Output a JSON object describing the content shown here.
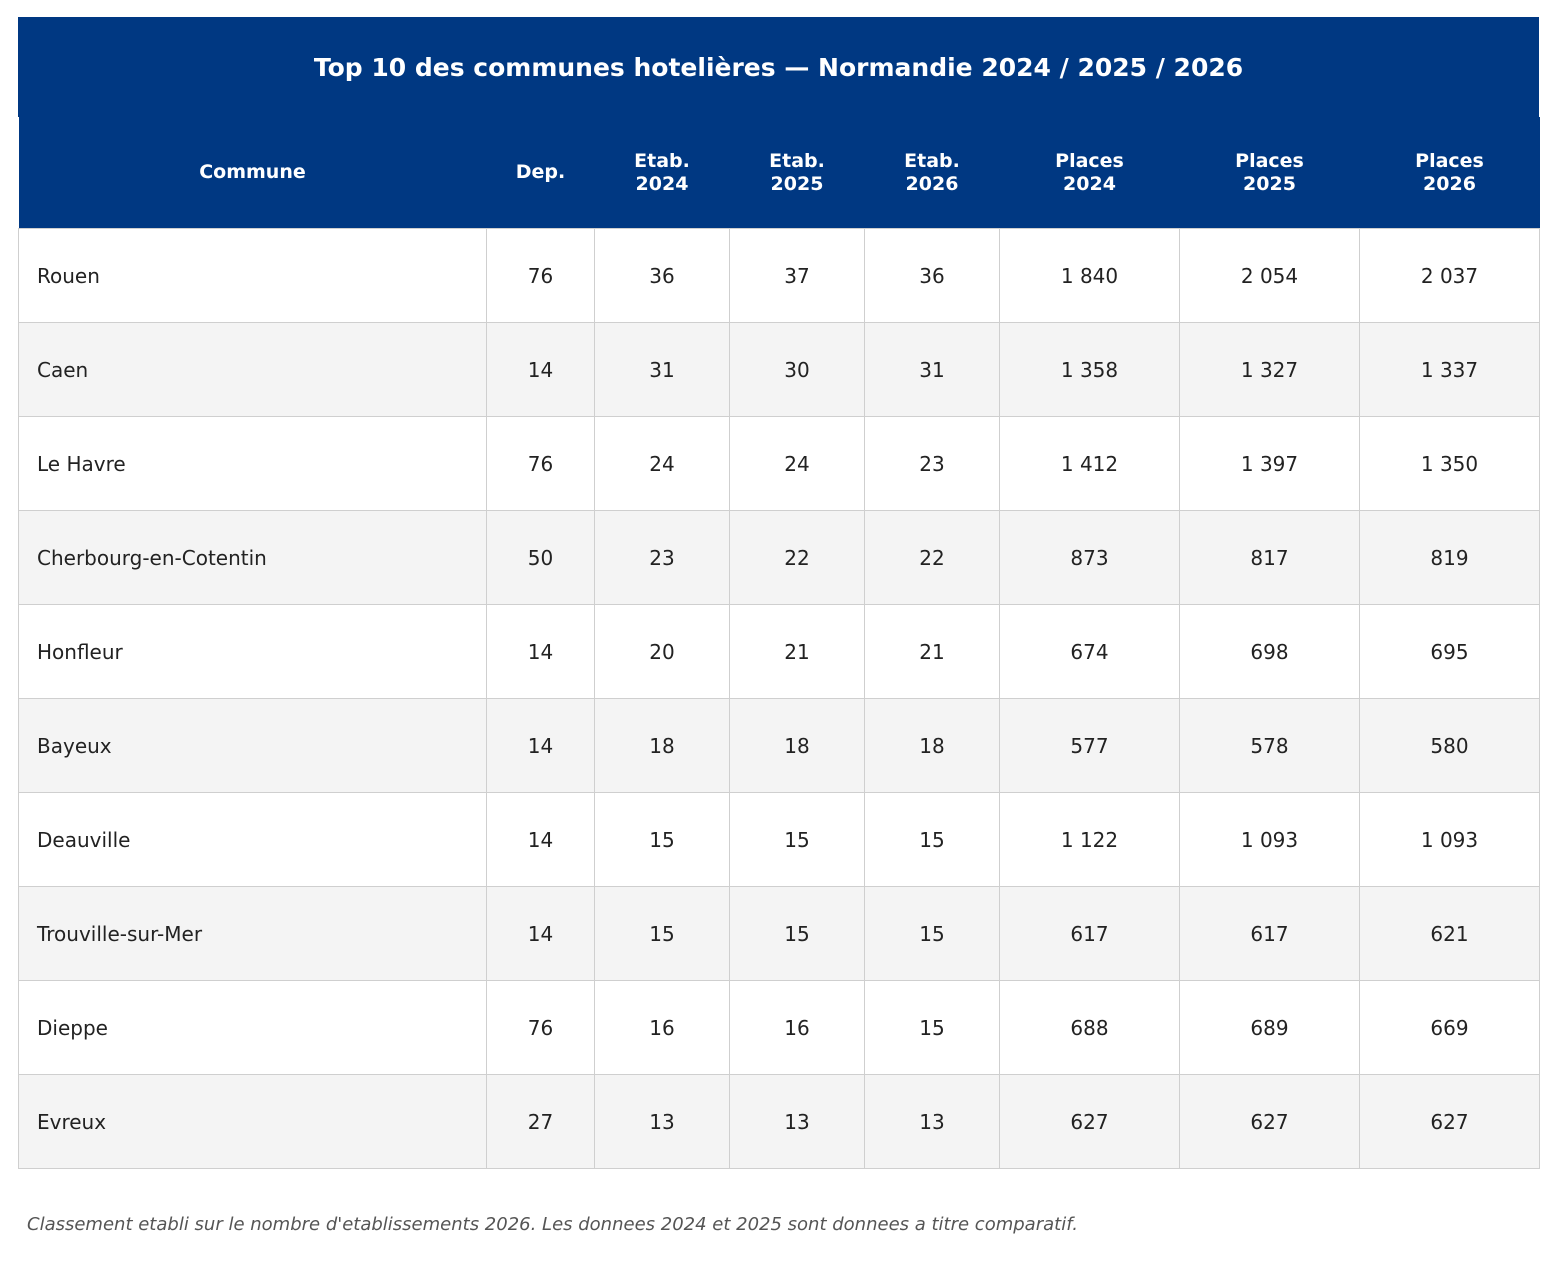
{
  "chart_data": {
    "type": "table",
    "title": "Top 10 des communes hotelières — Normandie 2024 / 2025 / 2026",
    "columns": [
      {
        "line1": "Commune",
        "line2": ""
      },
      {
        "line1": "Dep.",
        "line2": ""
      },
      {
        "line1": "Etab.",
        "line2": "2024"
      },
      {
        "line1": "Etab.",
        "line2": "2025"
      },
      {
        "line1": "Etab.",
        "line2": "2026"
      },
      {
        "line1": "Places",
        "line2": "2024"
      },
      {
        "line1": "Places",
        "line2": "2025"
      },
      {
        "line1": "Places",
        "line2": "2026"
      }
    ],
    "rows": [
      [
        "Rouen",
        "76",
        "36",
        "37",
        "36",
        "1 840",
        "2 054",
        "2 037"
      ],
      [
        "Caen",
        "14",
        "31",
        "30",
        "31",
        "1 358",
        "1 327",
        "1 337"
      ],
      [
        "Le Havre",
        "76",
        "24",
        "24",
        "23",
        "1 412",
        "1 397",
        "1 350"
      ],
      [
        "Cherbourg-en-Cotentin",
        "50",
        "23",
        "22",
        "22",
        "873",
        "817",
        "819"
      ],
      [
        "Honfleur",
        "14",
        "20",
        "21",
        "21",
        "674",
        "698",
        "695"
      ],
      [
        "Bayeux",
        "14",
        "18",
        "18",
        "18",
        "577",
        "578",
        "580"
      ],
      [
        "Deauville",
        "14",
        "15",
        "15",
        "15",
        "1 122",
        "1 093",
        "1 093"
      ],
      [
        "Trouville-sur-Mer",
        "14",
        "15",
        "15",
        "15",
        "617",
        "617",
        "621"
      ],
      [
        "Dieppe",
        "76",
        "16",
        "16",
        "15",
        "688",
        "689",
        "669"
      ],
      [
        "Evreux",
        "27",
        "13",
        "13",
        "13",
        "627",
        "627",
        "627"
      ]
    ]
  },
  "footnote": "Classement etabli sur le nombre d'etablissements 2026. Les donnees 2024 et 2025 sont donnees a titre comparatif.",
  "colors": {
    "header_bg": "#003882",
    "header_text": "#ffffff",
    "row_alt_bg": "#f4f4f4",
    "grid": "#cfcfcf"
  }
}
